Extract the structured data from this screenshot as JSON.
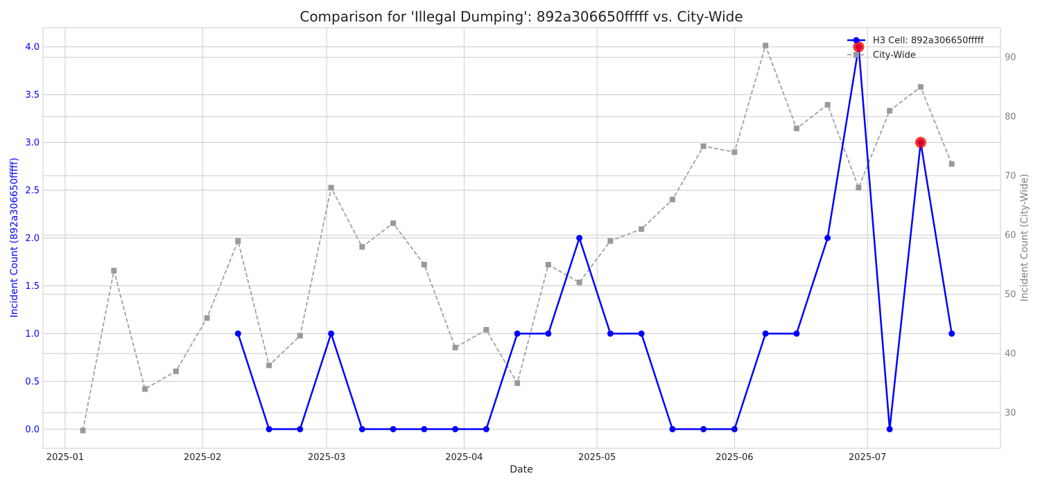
{
  "chart_data": {
    "type": "line",
    "title": "Comparison for 'Illegal Dumping': 892a306650fffff vs. City-Wide",
    "xlabel": "Date",
    "ylabel_left": "Incident Count (892a306650fffff)",
    "ylabel_right": "Incident Count (City-Wide)",
    "x_tick_labels": [
      "2025-01",
      "2025-02",
      "2025-03",
      "2025-04",
      "2025-05",
      "2025-06",
      "2025-07"
    ],
    "x_tick_dates": [
      "2025-01-01",
      "2025-02-01",
      "2025-03-01",
      "2025-04-01",
      "2025-05-01",
      "2025-06-01",
      "2025-07-01"
    ],
    "xlim": [
      "2024-12-27",
      "2025-07-31"
    ],
    "ylim_left": [
      -0.2,
      4.2
    ],
    "ylim_right": [
      24,
      95
    ],
    "y_left_ticks": [
      "0.0",
      "0.5",
      "1.0",
      "1.5",
      "2.0",
      "2.5",
      "3.0",
      "3.5",
      "4.0"
    ],
    "y_right_ticks": [
      "30",
      "40",
      "50",
      "60",
      "70",
      "80",
      "90"
    ],
    "grid": true,
    "legend_position": "top-right",
    "series": [
      {
        "name": "H3 Cell: 892a306650fffff",
        "axis": "left",
        "color": "#0000ff",
        "marker": "circle",
        "style": "solid",
        "points": [
          {
            "date": "2025-02-09",
            "value": 1
          },
          {
            "date": "2025-02-16",
            "value": 0
          },
          {
            "date": "2025-02-23",
            "value": 0
          },
          {
            "date": "2025-03-02",
            "value": 1
          },
          {
            "date": "2025-03-09",
            "value": 0
          },
          {
            "date": "2025-03-16",
            "value": 0
          },
          {
            "date": "2025-03-23",
            "value": 0
          },
          {
            "date": "2025-03-30",
            "value": 0
          },
          {
            "date": "2025-04-06",
            "value": 0
          },
          {
            "date": "2025-04-13",
            "value": 1
          },
          {
            "date": "2025-04-20",
            "value": 1
          },
          {
            "date": "2025-04-27",
            "value": 2
          },
          {
            "date": "2025-05-04",
            "value": 1
          },
          {
            "date": "2025-05-11",
            "value": 1
          },
          {
            "date": "2025-05-18",
            "value": 0
          },
          {
            "date": "2025-05-25",
            "value": 0
          },
          {
            "date": "2025-06-01",
            "value": 0
          },
          {
            "date": "2025-06-08",
            "value": 1
          },
          {
            "date": "2025-06-15",
            "value": 1
          },
          {
            "date": "2025-06-22",
            "value": 2
          },
          {
            "date": "2025-06-29",
            "value": 4
          },
          {
            "date": "2025-07-06",
            "value": 0
          },
          {
            "date": "2025-07-13",
            "value": 3
          },
          {
            "date": "2025-07-20",
            "value": 1
          }
        ],
        "highlighted": [
          {
            "date": "2025-06-29",
            "value": 4
          },
          {
            "date": "2025-07-13",
            "value": 3
          }
        ]
      },
      {
        "name": "City-Wide",
        "axis": "right",
        "color": "#a0a0a0",
        "marker": "square",
        "style": "dashed",
        "points": [
          {
            "date": "2025-01-05",
            "value": 27
          },
          {
            "date": "2025-01-12",
            "value": 54
          },
          {
            "date": "2025-01-19",
            "value": 34
          },
          {
            "date": "2025-01-26",
            "value": 37
          },
          {
            "date": "2025-02-02",
            "value": 46
          },
          {
            "date": "2025-02-09",
            "value": 59
          },
          {
            "date": "2025-02-16",
            "value": 38
          },
          {
            "date": "2025-02-23",
            "value": 43
          },
          {
            "date": "2025-03-02",
            "value": 68
          },
          {
            "date": "2025-03-09",
            "value": 58
          },
          {
            "date": "2025-03-16",
            "value": 62
          },
          {
            "date": "2025-03-23",
            "value": 55
          },
          {
            "date": "2025-03-30",
            "value": 41
          },
          {
            "date": "2025-04-06",
            "value": 44
          },
          {
            "date": "2025-04-13",
            "value": 35
          },
          {
            "date": "2025-04-20",
            "value": 55
          },
          {
            "date": "2025-04-27",
            "value": 52
          },
          {
            "date": "2025-05-04",
            "value": 59
          },
          {
            "date": "2025-05-11",
            "value": 61
          },
          {
            "date": "2025-05-18",
            "value": 66
          },
          {
            "date": "2025-05-25",
            "value": 75
          },
          {
            "date": "2025-06-01",
            "value": 74
          },
          {
            "date": "2025-06-08",
            "value": 92
          },
          {
            "date": "2025-06-15",
            "value": 78
          },
          {
            "date": "2025-06-22",
            "value": 82
          },
          {
            "date": "2025-06-29",
            "value": 68
          },
          {
            "date": "2025-07-06",
            "value": 81
          },
          {
            "date": "2025-07-13",
            "value": 85
          },
          {
            "date": "2025-07-20",
            "value": 72
          }
        ]
      }
    ],
    "colors": {
      "left_axis": "#0000ff",
      "right_axis": "#808080",
      "grid": "#cccccc",
      "highlight": "#ff0000"
    }
  }
}
